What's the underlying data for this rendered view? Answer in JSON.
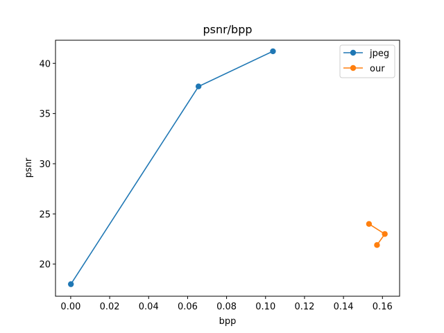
{
  "chart_data": {
    "type": "line",
    "title": "psnr/bpp",
    "xlabel": "bpp",
    "ylabel": "psnr",
    "xlim": [
      -0.0078,
      0.1688
    ],
    "ylim": [
      16.8,
      42.3
    ],
    "xticks": [
      0.0,
      0.02,
      0.04,
      0.06,
      0.08,
      0.1,
      0.12,
      0.14,
      0.16
    ],
    "xtick_labels": [
      "0.00",
      "0.02",
      "0.04",
      "0.06",
      "0.08",
      "0.10",
      "0.12",
      "0.14",
      "0.16"
    ],
    "yticks": [
      20,
      25,
      30,
      35,
      40
    ],
    "ytick_labels": [
      "20",
      "25",
      "30",
      "35",
      "40"
    ],
    "grid": false,
    "legend_position": "top-right",
    "series": [
      {
        "name": "jpeg",
        "color": "#1f77b4",
        "marker": "circle",
        "x": [
          0.0001,
          0.0656,
          0.1038
        ],
        "y": [
          18.0,
          37.7,
          41.2
        ]
      },
      {
        "name": "our",
        "color": "#ff7f0e",
        "marker": "circle",
        "x": [
          0.1531,
          0.1612,
          0.1572
        ],
        "y": [
          24.0,
          23.0,
          21.9
        ]
      }
    ]
  }
}
